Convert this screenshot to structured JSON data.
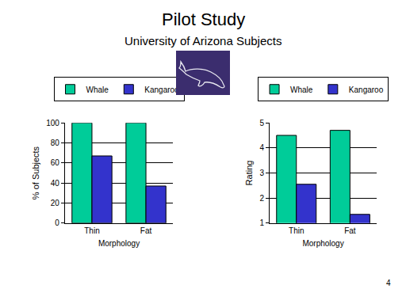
{
  "slide": {
    "title": "Pilot Study",
    "subtitle": "University of Arizona Subjects",
    "page": "4"
  },
  "chart_data": [
    {
      "type": "bar",
      "x_label": "Morphology",
      "y_label": "% of Subjects",
      "categories": [
        "Thin",
        "Fat"
      ],
      "series": [
        {
          "name": "Whale",
          "color": "#00cc99",
          "values": [
            100,
            100
          ]
        },
        {
          "name": "Kangaroo",
          "color": "#3333cc",
          "values": [
            67,
            37
          ]
        }
      ],
      "ylim": [
        0,
        100
      ],
      "yticks": [
        0,
        20,
        40,
        60,
        80,
        100
      ],
      "grid": true,
      "legend": "top"
    },
    {
      "type": "bar",
      "x_label": "Morphology",
      "y_label": "Rating",
      "categories": [
        "Thin",
        "Fat"
      ],
      "series": [
        {
          "name": "Whale",
          "color": "#00cc99",
          "values": [
            4.5,
            4.7
          ]
        },
        {
          "name": "Kangaroo",
          "color": "#3333cc",
          "values": [
            2.55,
            1.35
          ]
        }
      ],
      "ylim": [
        1,
        5
      ],
      "yticks": [
        1,
        2,
        3,
        4,
        5
      ],
      "grid": true,
      "legend": "top"
    }
  ]
}
